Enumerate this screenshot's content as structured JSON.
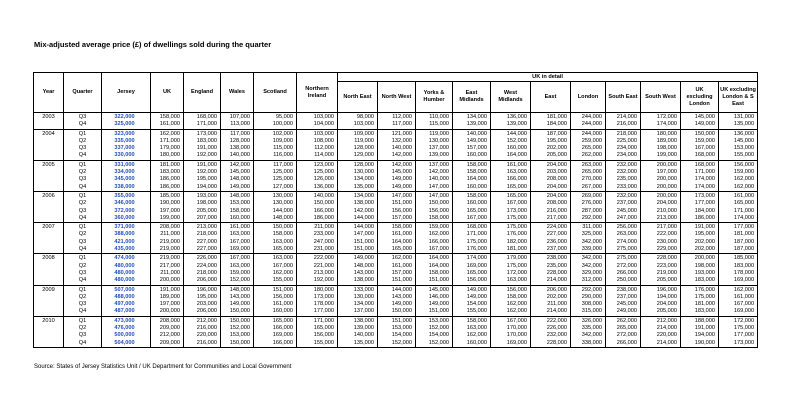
{
  "title": "Mix-adjusted average price (£) of dwellings sold during the quarter",
  "header": {
    "group": "UK in detail",
    "columns": [
      "Year",
      "Quarter",
      "Jersey",
      "UK",
      "England",
      "Wales",
      "Scotland",
      "Northern Ireland",
      "North East",
      "North West",
      "Yorks & Humber",
      "East Midlands",
      "West Midlands",
      "East",
      "London",
      "South East",
      "South West",
      "UK excluding London",
      "UK excluding London & S East"
    ]
  },
  "groups": [
    {
      "year": "2003",
      "rows": [
        {
          "quarter": "Q3",
          "values": [
            "322,000",
            "158,000",
            "168,000",
            "107,000",
            "95,000",
            "103,000",
            "98,000",
            "112,000",
            "110,000",
            "134,000",
            "136,000",
            "181,000",
            "244,000",
            "214,000",
            "172,000",
            "145,000",
            "131,000"
          ]
        },
        {
          "quarter": "Q4",
          "values": [
            "325,000",
            "161,000",
            "171,000",
            "113,000",
            "100,000",
            "104,000",
            "103,000",
            "117,000",
            "115,000",
            "139,000",
            "139,000",
            "184,000",
            "244,000",
            "216,000",
            "174,000",
            "149,000",
            "135,000"
          ]
        }
      ]
    },
    {
      "year": "2004",
      "rows": [
        {
          "quarter": "Q1",
          "values": [
            "323,000",
            "162,000",
            "173,000",
            "117,000",
            "102,000",
            "103,000",
            "109,000",
            "121,000",
            "119,000",
            "140,000",
            "144,000",
            "187,000",
            "244,000",
            "218,000",
            "180,000",
            "150,000",
            "136,000"
          ]
        },
        {
          "quarter": "Q2",
          "values": [
            "335,000",
            "171,000",
            "183,000",
            "128,000",
            "109,000",
            "108,000",
            "119,000",
            "132,000",
            "130,000",
            "149,000",
            "152,000",
            "195,000",
            "259,000",
            "225,000",
            "189,000",
            "159,000",
            "145,000"
          ]
        },
        {
          "quarter": "Q3",
          "values": [
            "337,000",
            "179,000",
            "191,000",
            "138,000",
            "115,000",
            "112,000",
            "128,000",
            "140,000",
            "137,000",
            "157,000",
            "160,000",
            "202,000",
            "265,000",
            "234,000",
            "198,000",
            "167,000",
            "153,000"
          ]
        },
        {
          "quarter": "Q4",
          "values": [
            "330,000",
            "180,000",
            "192,000",
            "140,000",
            "116,000",
            "114,000",
            "129,000",
            "142,000",
            "139,000",
            "160,000",
            "164,000",
            "205,000",
            "262,000",
            "234,000",
            "199,000",
            "168,000",
            "155,000"
          ]
        }
      ]
    },
    {
      "year": "2005",
      "rows": [
        {
          "quarter": "Q1",
          "values": [
            "331,000",
            "181,000",
            "191,000",
            "142,000",
            "117,000",
            "123,000",
            "128,000",
            "142,000",
            "137,000",
            "158,000",
            "161,000",
            "204,000",
            "263,000",
            "232,000",
            "200,000",
            "168,000",
            "156,000"
          ]
        },
        {
          "quarter": "Q2",
          "values": [
            "334,000",
            "183,000",
            "192,000",
            "145,000",
            "125,000",
            "125,000",
            "130,000",
            "145,000",
            "142,000",
            "158,000",
            "163,000",
            "203,000",
            "265,000",
            "232,000",
            "197,000",
            "171,000",
            "159,000"
          ]
        },
        {
          "quarter": "Q3",
          "values": [
            "345,000",
            "186,000",
            "195,000",
            "148,000",
            "125,000",
            "126,000",
            "134,000",
            "149,000",
            "140,000",
            "164,000",
            "166,000",
            "208,000",
            "270,000",
            "235,000",
            "200,000",
            "174,000",
            "162,000"
          ]
        },
        {
          "quarter": "Q4",
          "values": [
            "338,000",
            "186,000",
            "194,000",
            "149,000",
            "127,000",
            "136,000",
            "135,000",
            "149,000",
            "147,000",
            "160,000",
            "165,000",
            "204,000",
            "267,000",
            "233,000",
            "200,000",
            "174,000",
            "162,000"
          ]
        }
      ]
    },
    {
      "year": "2006",
      "rows": [
        {
          "quarter": "Q1",
          "values": [
            "355,000",
            "185,000",
            "193,000",
            "148,000",
            "130,000",
            "140,000",
            "134,000",
            "147,000",
            "147,000",
            "158,000",
            "165,000",
            "204,000",
            "269,000",
            "232,000",
            "200,000",
            "173,000",
            "161,000"
          ]
        },
        {
          "quarter": "Q2",
          "values": [
            "346,000",
            "190,000",
            "198,000",
            "153,000",
            "130,000",
            "150,000",
            "138,000",
            "151,000",
            "150,000",
            "160,000",
            "167,000",
            "208,000",
            "276,000",
            "237,000",
            "204,000",
            "177,000",
            "165,000"
          ]
        },
        {
          "quarter": "Q3",
          "values": [
            "372,000",
            "197,000",
            "205,000",
            "158,000",
            "144,000",
            "166,000",
            "142,000",
            "156,000",
            "156,000",
            "165,000",
            "173,000",
            "216,000",
            "287,000",
            "245,000",
            "210,000",
            "184,000",
            "171,000"
          ]
        },
        {
          "quarter": "Q4",
          "values": [
            "360,000",
            "199,000",
            "207,000",
            "160,000",
            "148,000",
            "186,000",
            "144,000",
            "157,000",
            "158,000",
            "167,000",
            "175,000",
            "217,000",
            "292,000",
            "247,000",
            "213,000",
            "186,000",
            "174,000"
          ]
        }
      ]
    },
    {
      "year": "2007",
      "rows": [
        {
          "quarter": "Q1",
          "values": [
            "371,000",
            "208,000",
            "213,000",
            "161,000",
            "150,000",
            "211,000",
            "144,000",
            "158,000",
            "159,000",
            "168,000",
            "175,000",
            "224,000",
            "311,000",
            "256,000",
            "217,000",
            "191,000",
            "177,000"
          ]
        },
        {
          "quarter": "Q2",
          "values": [
            "388,000",
            "211,000",
            "218,000",
            "163,000",
            "158,000",
            "233,000",
            "147,000",
            "161,000",
            "162,000",
            "171,000",
            "176,000",
            "227,000",
            "325,000",
            "263,000",
            "222,000",
            "195,000",
            "181,000"
          ]
        },
        {
          "quarter": "Q3",
          "values": [
            "421,000",
            "219,000",
            "227,000",
            "167,000",
            "163,000",
            "247,000",
            "151,000",
            "164,000",
            "166,000",
            "175,000",
            "182,000",
            "236,000",
            "342,000",
            "274,000",
            "230,000",
            "202,000",
            "187,000"
          ]
        },
        {
          "quarter": "Q4",
          "values": [
            "435,000",
            "219,000",
            "227,000",
            "169,000",
            "165,000",
            "231,000",
            "151,000",
            "165,000",
            "167,000",
            "176,000",
            "181,000",
            "237,000",
            "339,000",
            "275,000",
            "229,000",
            "202,000",
            "187,000"
          ]
        }
      ]
    },
    {
      "year": "2008",
      "rows": [
        {
          "quarter": "Q1",
          "values": [
            "474,000",
            "219,000",
            "226,000",
            "167,000",
            "163,000",
            "222,000",
            "149,000",
            "162,000",
            "164,000",
            "174,000",
            "179,000",
            "238,000",
            "342,000",
            "275,000",
            "228,000",
            "200,000",
            "185,000"
          ]
        },
        {
          "quarter": "Q2",
          "values": [
            "480,000",
            "217,000",
            "224,000",
            "163,000",
            "167,000",
            "221,000",
            "148,000",
            "161,000",
            "164,000",
            "169,000",
            "175,000",
            "235,000",
            "342,000",
            "272,000",
            "223,000",
            "198,000",
            "183,000"
          ]
        },
        {
          "quarter": "Q3",
          "values": [
            "480,000",
            "211,000",
            "218,000",
            "159,000",
            "162,000",
            "213,000",
            "143,000",
            "157,000",
            "158,000",
            "165,000",
            "172,000",
            "228,000",
            "329,000",
            "266,000",
            "219,000",
            "193,000",
            "178,000"
          ]
        },
        {
          "quarter": "Q4",
          "values": [
            "480,000",
            "200,000",
            "206,000",
            "152,000",
            "155,000",
            "192,000",
            "138,000",
            "151,000",
            "151,000",
            "156,000",
            "163,000",
            "214,000",
            "312,000",
            "250,000",
            "205,000",
            "183,000",
            "169,000"
          ]
        }
      ]
    },
    {
      "year": "2009",
      "rows": [
        {
          "quarter": "Q1",
          "values": [
            "507,000",
            "191,000",
            "196,000",
            "148,000",
            "151,000",
            "180,000",
            "133,000",
            "144,000",
            "145,000",
            "149,000",
            "156,000",
            "206,000",
            "292,000",
            "238,000",
            "196,000",
            "176,000",
            "162,000"
          ]
        },
        {
          "quarter": "Q2",
          "values": [
            "488,000",
            "189,000",
            "195,000",
            "143,000",
            "156,000",
            "173,000",
            "130,000",
            "143,000",
            "146,000",
            "149,000",
            "158,000",
            "202,000",
            "290,000",
            "237,000",
            "194,000",
            "175,000",
            "161,000"
          ]
        },
        {
          "quarter": "Q3",
          "values": [
            "497,000",
            "197,000",
            "203,000",
            "149,000",
            "161,000",
            "178,000",
            "134,000",
            "149,000",
            "149,000",
            "154,000",
            "162,000",
            "211,000",
            "308,000",
            "245,000",
            "204,000",
            "181,000",
            "167,000"
          ]
        },
        {
          "quarter": "Q4",
          "values": [
            "487,000",
            "200,000",
            "206,000",
            "150,000",
            "160,000",
            "177,000",
            "137,000",
            "150,000",
            "151,000",
            "155,000",
            "162,000",
            "214,000",
            "315,000",
            "249,000",
            "205,000",
            "183,000",
            "169,000"
          ]
        }
      ]
    },
    {
      "year": "2010",
      "rows": [
        {
          "quarter": "Q1",
          "values": [
            "473,000",
            "208,000",
            "212,000",
            "150,000",
            "165,000",
            "171,000",
            "138,000",
            "151,000",
            "153,000",
            "158,000",
            "167,000",
            "222,000",
            "326,000",
            "262,000",
            "212,000",
            "188,000",
            "172,000"
          ]
        },
        {
          "quarter": "Q2",
          "values": [
            "476,000",
            "209,000",
            "216,000",
            "152,000",
            "166,000",
            "165,000",
            "139,000",
            "153,000",
            "152,000",
            "163,000",
            "170,000",
            "226,000",
            "335,000",
            "265,000",
            "214,000",
            "191,000",
            "175,000"
          ]
        },
        {
          "quarter": "Q3",
          "values": [
            "500,000",
            "212,000",
            "220,000",
            "153,000",
            "169,000",
            "156,000",
            "140,000",
            "154,000",
            "154,000",
            "162,000",
            "170,000",
            "232,000",
            "342,000",
            "272,000",
            "220,000",
            "194,000",
            "177,000"
          ]
        },
        {
          "quarter": "Q4",
          "values": [
            "504,000",
            "209,000",
            "216,000",
            "150,000",
            "166,000",
            "155,000",
            "135,000",
            "152,000",
            "152,000",
            "160,000",
            "169,000",
            "228,000",
            "338,000",
            "266,000",
            "214,000",
            "190,000",
            "173,000"
          ]
        }
      ]
    }
  ],
  "source": "Source: States of Jersey Statistics Unit / UK Department for Communities and Local Government"
}
